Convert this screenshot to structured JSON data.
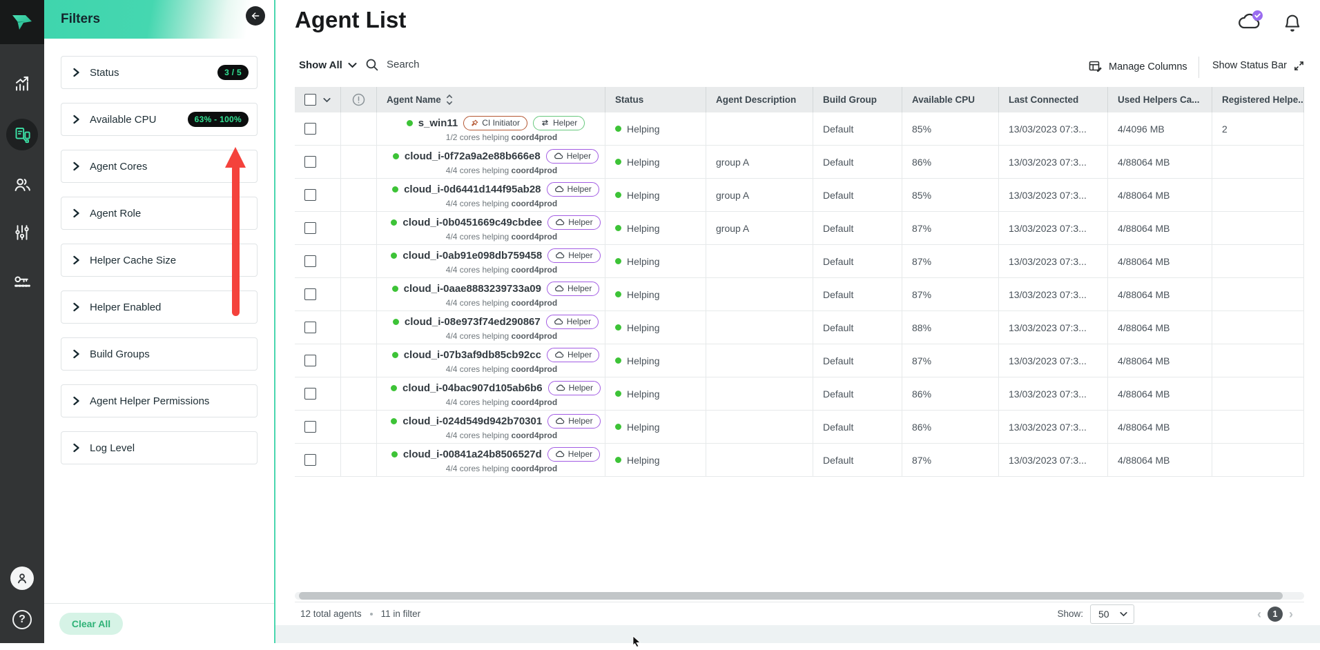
{
  "sidebar": {
    "items": [
      {
        "name": "analytics"
      },
      {
        "name": "agents",
        "active": true
      },
      {
        "name": "users"
      },
      {
        "name": "settings"
      },
      {
        "name": "license"
      }
    ]
  },
  "filters": {
    "title": "Filters",
    "items": [
      {
        "label": "Status",
        "badge": "3 / 5"
      },
      {
        "label": "Available CPU",
        "badge": "63% - 100%"
      },
      {
        "label": "Agent Cores",
        "badge": ""
      },
      {
        "label": "Agent Role",
        "badge": ""
      },
      {
        "label": "Helper Cache Size",
        "badge": ""
      },
      {
        "label": "Helper Enabled",
        "badge": ""
      },
      {
        "label": "Build Groups",
        "badge": ""
      },
      {
        "label": "Agent Helper Permissions",
        "badge": ""
      },
      {
        "label": "Log Level",
        "badge": ""
      }
    ],
    "clear_all_label": "Clear All"
  },
  "header": {
    "title": "Agent List",
    "show_filter_label": "Show All",
    "search_placeholder": "Search",
    "manage_columns_label": "Manage Columns",
    "show_status_bar_label": "Show Status Bar"
  },
  "table": {
    "column_headers": {
      "agent_name": "Agent Name",
      "status": "Status",
      "agent_description": "Agent Description",
      "build_group": "Build Group",
      "available_cpu": "Available CPU",
      "last_connected": "Last Connected",
      "used_helpers": "Used Helpers Ca...",
      "registered_helpers": "Registered Helpe.."
    },
    "agents": [
      {
        "name": "s_win11",
        "badges": [
          {
            "type": "ci",
            "label": "CI Initiator"
          },
          {
            "type": "helper_green",
            "label": "Helper"
          }
        ],
        "sub_plain": "1/2 cores helping",
        "sub_bold": "coord4prod",
        "status": "Helping",
        "description": "",
        "build_group": "Default",
        "available_cpu": "85%",
        "last_connected": "13/03/2023 07:3...",
        "used_helpers": "4/4096 MB",
        "registered_helpers": "2"
      },
      {
        "name": "cloud_i-0f72a9a2e88b666e8",
        "badges": [
          {
            "type": "helper_purple",
            "label": "Helper"
          }
        ],
        "sub_plain": "4/4 cores helping",
        "sub_bold": "coord4prod",
        "status": "Helping",
        "description": "group A",
        "build_group": "Default",
        "available_cpu": "86%",
        "last_connected": "13/03/2023 07:3...",
        "used_helpers": "4/88064 MB",
        "registered_helpers": ""
      },
      {
        "name": "cloud_i-0d6441d144f95ab28",
        "badges": [
          {
            "type": "helper_purple",
            "label": "Helper"
          }
        ],
        "sub_plain": "4/4 cores helping",
        "sub_bold": "coord4prod",
        "status": "Helping",
        "description": "group A",
        "build_group": "Default",
        "available_cpu": "85%",
        "last_connected": "13/03/2023 07:3...",
        "used_helpers": "4/88064 MB",
        "registered_helpers": ""
      },
      {
        "name": "cloud_i-0b0451669c49cbdee",
        "badges": [
          {
            "type": "helper_purple",
            "label": "Helper"
          }
        ],
        "sub_plain": "4/4 cores helping",
        "sub_bold": "coord4prod",
        "status": "Helping",
        "description": "group A",
        "build_group": "Default",
        "available_cpu": "87%",
        "last_connected": "13/03/2023 07:3...",
        "used_helpers": "4/88064 MB",
        "registered_helpers": ""
      },
      {
        "name": "cloud_i-0ab91e098db759458",
        "badges": [
          {
            "type": "helper_purple",
            "label": "Helper"
          }
        ],
        "sub_plain": "4/4 cores helping",
        "sub_bold": "coord4prod",
        "status": "Helping",
        "description": "",
        "build_group": "Default",
        "available_cpu": "87%",
        "last_connected": "13/03/2023 07:3...",
        "used_helpers": "4/88064 MB",
        "registered_helpers": ""
      },
      {
        "name": "cloud_i-0aae8883239733a09",
        "badges": [
          {
            "type": "helper_purple",
            "label": "Helper"
          }
        ],
        "sub_plain": "4/4 cores helping",
        "sub_bold": "coord4prod",
        "status": "Helping",
        "description": "",
        "build_group": "Default",
        "available_cpu": "87%",
        "last_connected": "13/03/2023 07:3...",
        "used_helpers": "4/88064 MB",
        "registered_helpers": ""
      },
      {
        "name": "cloud_i-08e973f74ed290867",
        "badges": [
          {
            "type": "helper_purple",
            "label": "Helper"
          }
        ],
        "sub_plain": "4/4 cores helping",
        "sub_bold": "coord4prod",
        "status": "Helping",
        "description": "",
        "build_group": "Default",
        "available_cpu": "88%",
        "last_connected": "13/03/2023 07:3...",
        "used_helpers": "4/88064 MB",
        "registered_helpers": ""
      },
      {
        "name": "cloud_i-07b3af9db85cb92cc",
        "badges": [
          {
            "type": "helper_purple",
            "label": "Helper"
          }
        ],
        "sub_plain": "4/4 cores helping",
        "sub_bold": "coord4prod",
        "status": "Helping",
        "description": "",
        "build_group": "Default",
        "available_cpu": "87%",
        "last_connected": "13/03/2023 07:3...",
        "used_helpers": "4/88064 MB",
        "registered_helpers": ""
      },
      {
        "name": "cloud_i-04bac907d105ab6b6",
        "badges": [
          {
            "type": "helper_purple",
            "label": "Helper"
          }
        ],
        "sub_plain": "4/4 cores helping",
        "sub_bold": "coord4prod",
        "status": "Helping",
        "description": "",
        "build_group": "Default",
        "available_cpu": "86%",
        "last_connected": "13/03/2023 07:3...",
        "used_helpers": "4/88064 MB",
        "registered_helpers": ""
      },
      {
        "name": "cloud_i-024d549d942b70301",
        "badges": [
          {
            "type": "helper_purple",
            "label": "Helper"
          }
        ],
        "sub_plain": "4/4 cores helping",
        "sub_bold": "coord4prod",
        "status": "Helping",
        "description": "",
        "build_group": "Default",
        "available_cpu": "86%",
        "last_connected": "13/03/2023 07:3...",
        "used_helpers": "4/88064 MB",
        "registered_helpers": ""
      },
      {
        "name": "cloud_i-00841a24b8506527d",
        "badges": [
          {
            "type": "helper_purple",
            "label": "Helper"
          }
        ],
        "sub_plain": "4/4 cores helping",
        "sub_bold": "coord4prod",
        "status": "Helping",
        "description": "",
        "build_group": "Default",
        "available_cpu": "87%",
        "last_connected": "13/03/2023 07:3...",
        "used_helpers": "4/88064 MB",
        "registered_helpers": ""
      }
    ]
  },
  "footer": {
    "total": "12 total agents",
    "in_filter": "11 in filter",
    "show_label": "Show:",
    "page_size": "50",
    "current_page": "1"
  },
  "colors": {
    "accent_teal": "#3fd5ad",
    "filter_badge_bg": "#0c0e0e",
    "filter_badge_text": "#31e393",
    "status_green": "#3dc337",
    "helper_purple": "#a25be3",
    "helper_green": "#67c87d",
    "ci_badge_red": "#b45732",
    "annotation_red": "#f4423c",
    "notification_purple": "#9a6cf0"
  }
}
